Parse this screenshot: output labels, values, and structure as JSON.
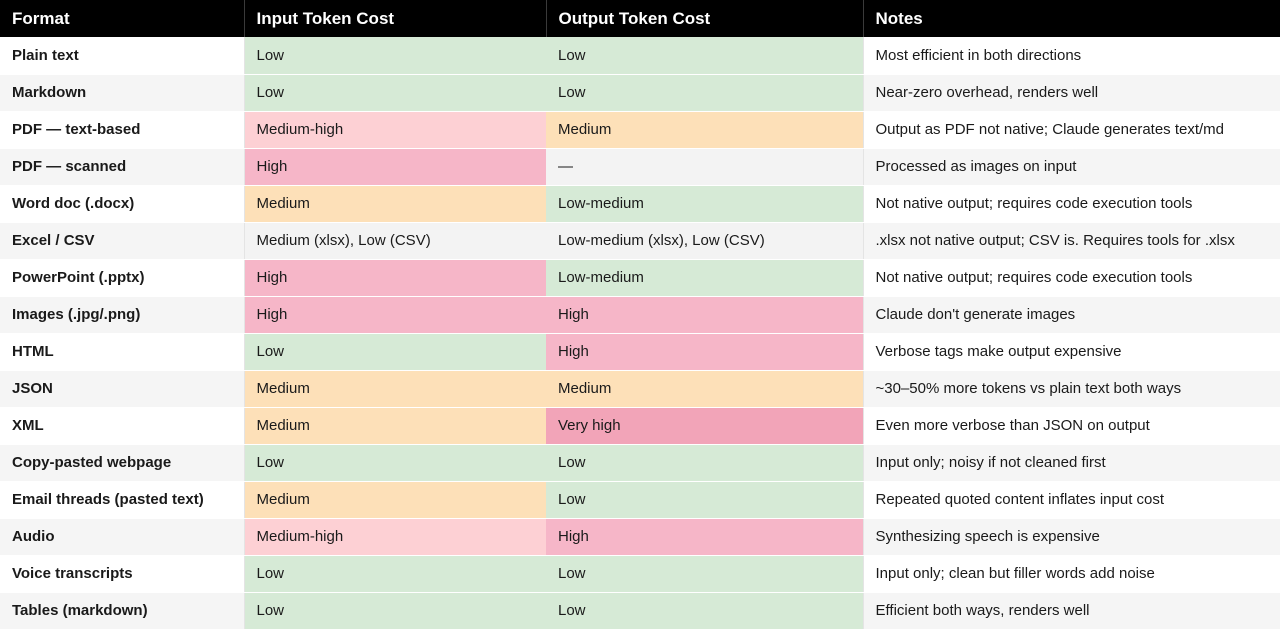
{
  "table": {
    "headers": [
      "Format",
      "Input Token Cost",
      "Output Token Cost",
      "Notes"
    ],
    "rows": [
      {
        "format": "Plain text",
        "input": "Low",
        "output": "Low",
        "notes": "Most efficient in both directions"
      },
      {
        "format": "Markdown",
        "input": "Low",
        "output": "Low",
        "notes": "Near-zero overhead, renders well"
      },
      {
        "format": "PDF — text-based",
        "input": "Medium-high",
        "output": "Medium",
        "notes": "Output as PDF not native; Claude generates text/md"
      },
      {
        "format": "PDF — scanned",
        "input": "High",
        "output": "—",
        "notes": "Processed as images on input"
      },
      {
        "format": "Word doc (.docx)",
        "input": "Medium",
        "output": "Low-medium",
        "notes": "Not native output; requires code execution tools"
      },
      {
        "format": "Excel / CSV",
        "input": "Medium (xlsx), Low (CSV)",
        "output": "Low-medium (xlsx), Low (CSV)",
        "notes": ".xlsx not native output; CSV is. Requires tools for .xlsx"
      },
      {
        "format": "PowerPoint (.pptx)",
        "input": "High",
        "output": "Low-medium",
        "notes": "Not native output; requires code execution tools"
      },
      {
        "format": "Images (.jpg/.png)",
        "input": "High",
        "output": "High",
        "notes": "Claude don't generate images"
      },
      {
        "format": "HTML",
        "input": "Low",
        "output": "High",
        "notes": "Verbose tags make output expensive"
      },
      {
        "format": "JSON",
        "input": "Medium",
        "output": "Medium",
        "notes": "~30–50% more tokens vs plain text both ways"
      },
      {
        "format": "XML",
        "input": "Medium",
        "output": "Very high",
        "notes": "Even more verbose than JSON on output"
      },
      {
        "format": "Copy-pasted webpage",
        "input": "Low",
        "output": "Low",
        "notes": "Input only; noisy if not cleaned first"
      },
      {
        "format": "Email threads (pasted text)",
        "input": "Medium",
        "output": "Low",
        "notes": "Repeated quoted content inflates input cost"
      },
      {
        "format": "Audio",
        "input": "Medium-high",
        "output": "High",
        "notes": "Synthesizing speech is expensive"
      },
      {
        "format": "Voice transcripts",
        "input": "Low",
        "output": "Low",
        "notes": "Input only; clean but filler words add noise"
      },
      {
        "format": "Tables (markdown)",
        "input": "Low",
        "output": "Low",
        "notes": "Efficient both ways, renders well"
      }
    ]
  },
  "colors": {
    "header_bg": "#000000",
    "low": "#d6ead6",
    "medium": "#fde0b8",
    "medium_high": "#fdd0d4",
    "high": "#f6b6c8",
    "very_high": "#f2a4b8",
    "neutral": "#f3f3f3"
  }
}
